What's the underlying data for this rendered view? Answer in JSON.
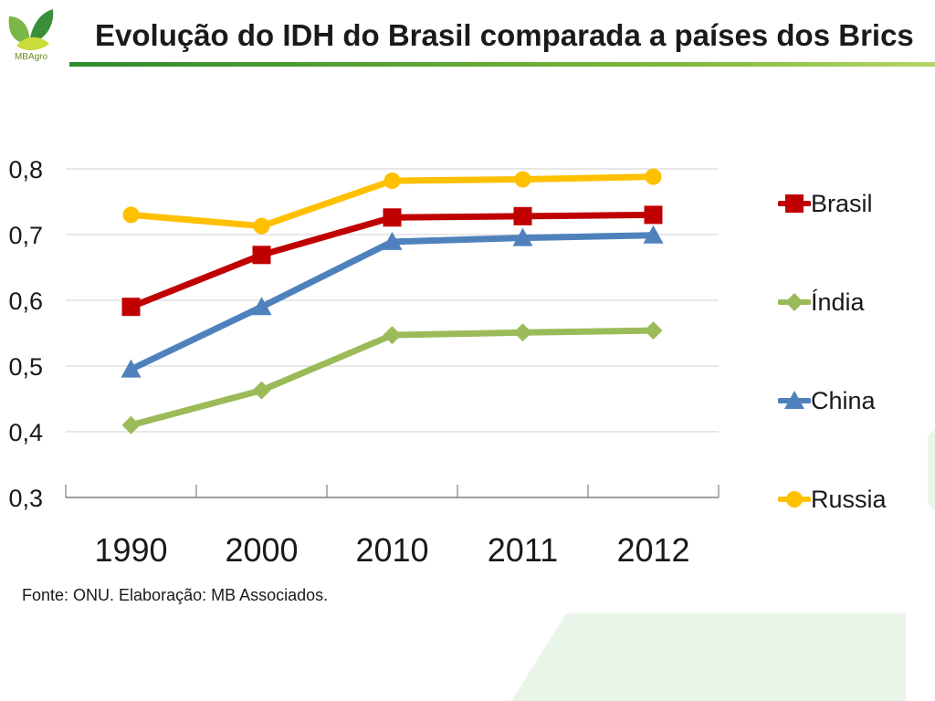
{
  "logo": {
    "text": "MBAgro"
  },
  "title": "Evolução do IDH do Brasil comparada a países dos Brics",
  "source": "Fonte: ONU. Elaboração: MB Associados.",
  "colors": {
    "Brasil": "#c00000",
    "Índia": "#9bbb59",
    "China": "#4f81bd",
    "Russia": "#ffc000",
    "grid": "#d9d9d9",
    "axis": "#808080",
    "title_rule": "#5aa02c"
  },
  "chart_data": {
    "type": "line",
    "categories": [
      "1990",
      "2000",
      "2010",
      "2011",
      "2012"
    ],
    "ylim": [
      0.3,
      0.8
    ],
    "yticks": [
      "0,3",
      "0,4",
      "0,5",
      "0,6",
      "0,7",
      "0,8"
    ],
    "grid": true,
    "legend_position": "right",
    "series": [
      {
        "name": "Brasil",
        "marker": "square",
        "values": [
          0.59,
          0.669,
          0.726,
          0.728,
          0.73
        ]
      },
      {
        "name": "Índia",
        "marker": "diamond",
        "values": [
          0.41,
          0.463,
          0.547,
          0.551,
          0.554
        ]
      },
      {
        "name": "China",
        "marker": "triangle",
        "values": [
          0.495,
          0.59,
          0.689,
          0.695,
          0.699
        ]
      },
      {
        "name": "Russia",
        "marker": "circle",
        "values": [
          0.73,
          0.713,
          0.782,
          0.784,
          0.788
        ]
      }
    ]
  }
}
